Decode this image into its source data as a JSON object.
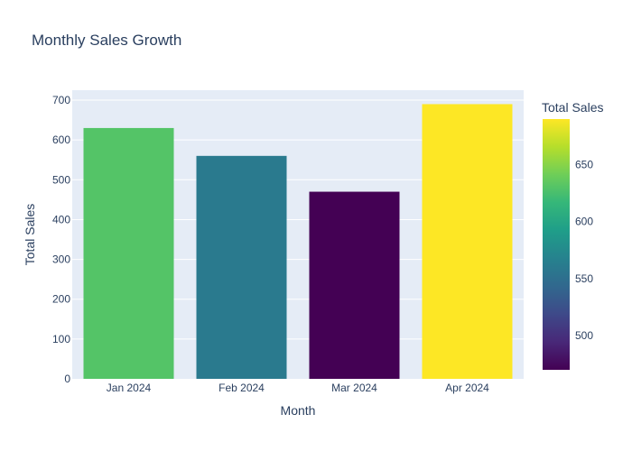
{
  "chart_data": {
    "type": "bar",
    "title": "Monthly Sales Growth",
    "xlabel": "Month",
    "ylabel": "Total Sales",
    "categories": [
      "Jan 2024",
      "Feb 2024",
      "Mar 2024",
      "Apr 2024"
    ],
    "values": [
      630,
      560,
      470,
      690
    ],
    "ylim": [
      0,
      725
    ],
    "yticks": [
      0,
      100,
      200,
      300,
      400,
      500,
      600,
      700
    ],
    "grid": true,
    "colorbar": {
      "title": "Total Sales",
      "range": [
        470,
        690
      ],
      "ticks": [
        500,
        550,
        600,
        650
      ],
      "colorscale": "Viridis"
    },
    "colors": {
      "plot_bg": "#e5ecf6",
      "grid": "#ffffff",
      "text": "#2a3f5f"
    }
  }
}
